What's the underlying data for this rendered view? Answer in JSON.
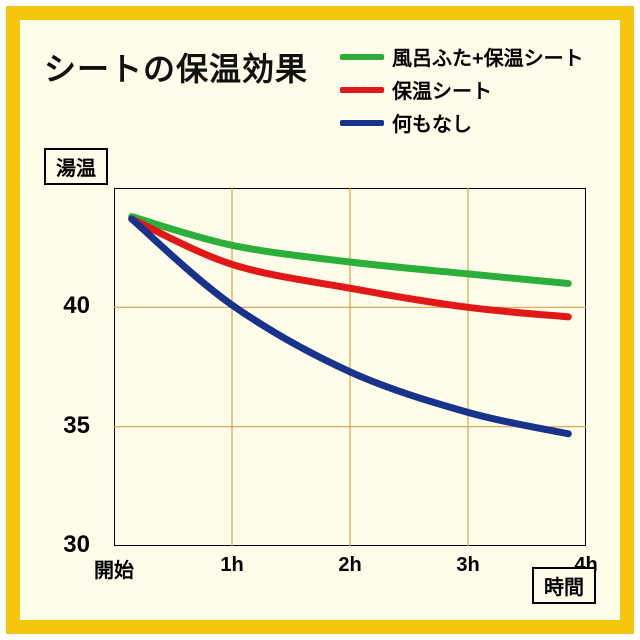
{
  "frame": {
    "border_color": "#f4c60b",
    "background_color": "#fffde9"
  },
  "title": "シートの保温効果",
  "y_axis_label": "湯温",
  "x_axis_label": "時間",
  "chart": {
    "type": "line",
    "xlim": [
      0,
      4
    ],
    "ylim": [
      30,
      45
    ],
    "x_categories": [
      "開始",
      "1h",
      "2h",
      "3h",
      "4h"
    ],
    "x_values": [
      0,
      1,
      2,
      3,
      4
    ],
    "y_ticks": [
      30,
      35,
      40
    ],
    "grid_color": "#d9a24a",
    "axis_color": "#000000",
    "grid_width": 1.2,
    "axis_width": 2.0,
    "line_width": 7,
    "background_color": "#fffde9",
    "series": [
      {
        "name": "風呂ふた+保温シート",
        "color": "#2cae3b",
        "x": [
          0.15,
          1.0,
          2.0,
          3.0,
          3.85
        ],
        "y": [
          43.8,
          42.6,
          41.9,
          41.4,
          41.0
        ]
      },
      {
        "name": "保温シート",
        "color": "#e01818",
        "x": [
          0.15,
          1.0,
          2.0,
          3.0,
          3.85
        ],
        "y": [
          43.7,
          41.8,
          40.8,
          40.0,
          39.6
        ]
      },
      {
        "name": "何もなし",
        "color": "#17338c",
        "x": [
          0.15,
          1.0,
          2.0,
          3.0,
          3.85
        ],
        "y": [
          43.7,
          40.1,
          37.3,
          35.6,
          34.7
        ]
      }
    ]
  },
  "legend": {
    "items": [
      {
        "label": "風呂ふた+保温シート",
        "color": "#2cae3b"
      },
      {
        "label": "保温シート",
        "color": "#e01818"
      },
      {
        "label": "何もなし",
        "color": "#17338c"
      }
    ],
    "label_fontsize": 20
  }
}
